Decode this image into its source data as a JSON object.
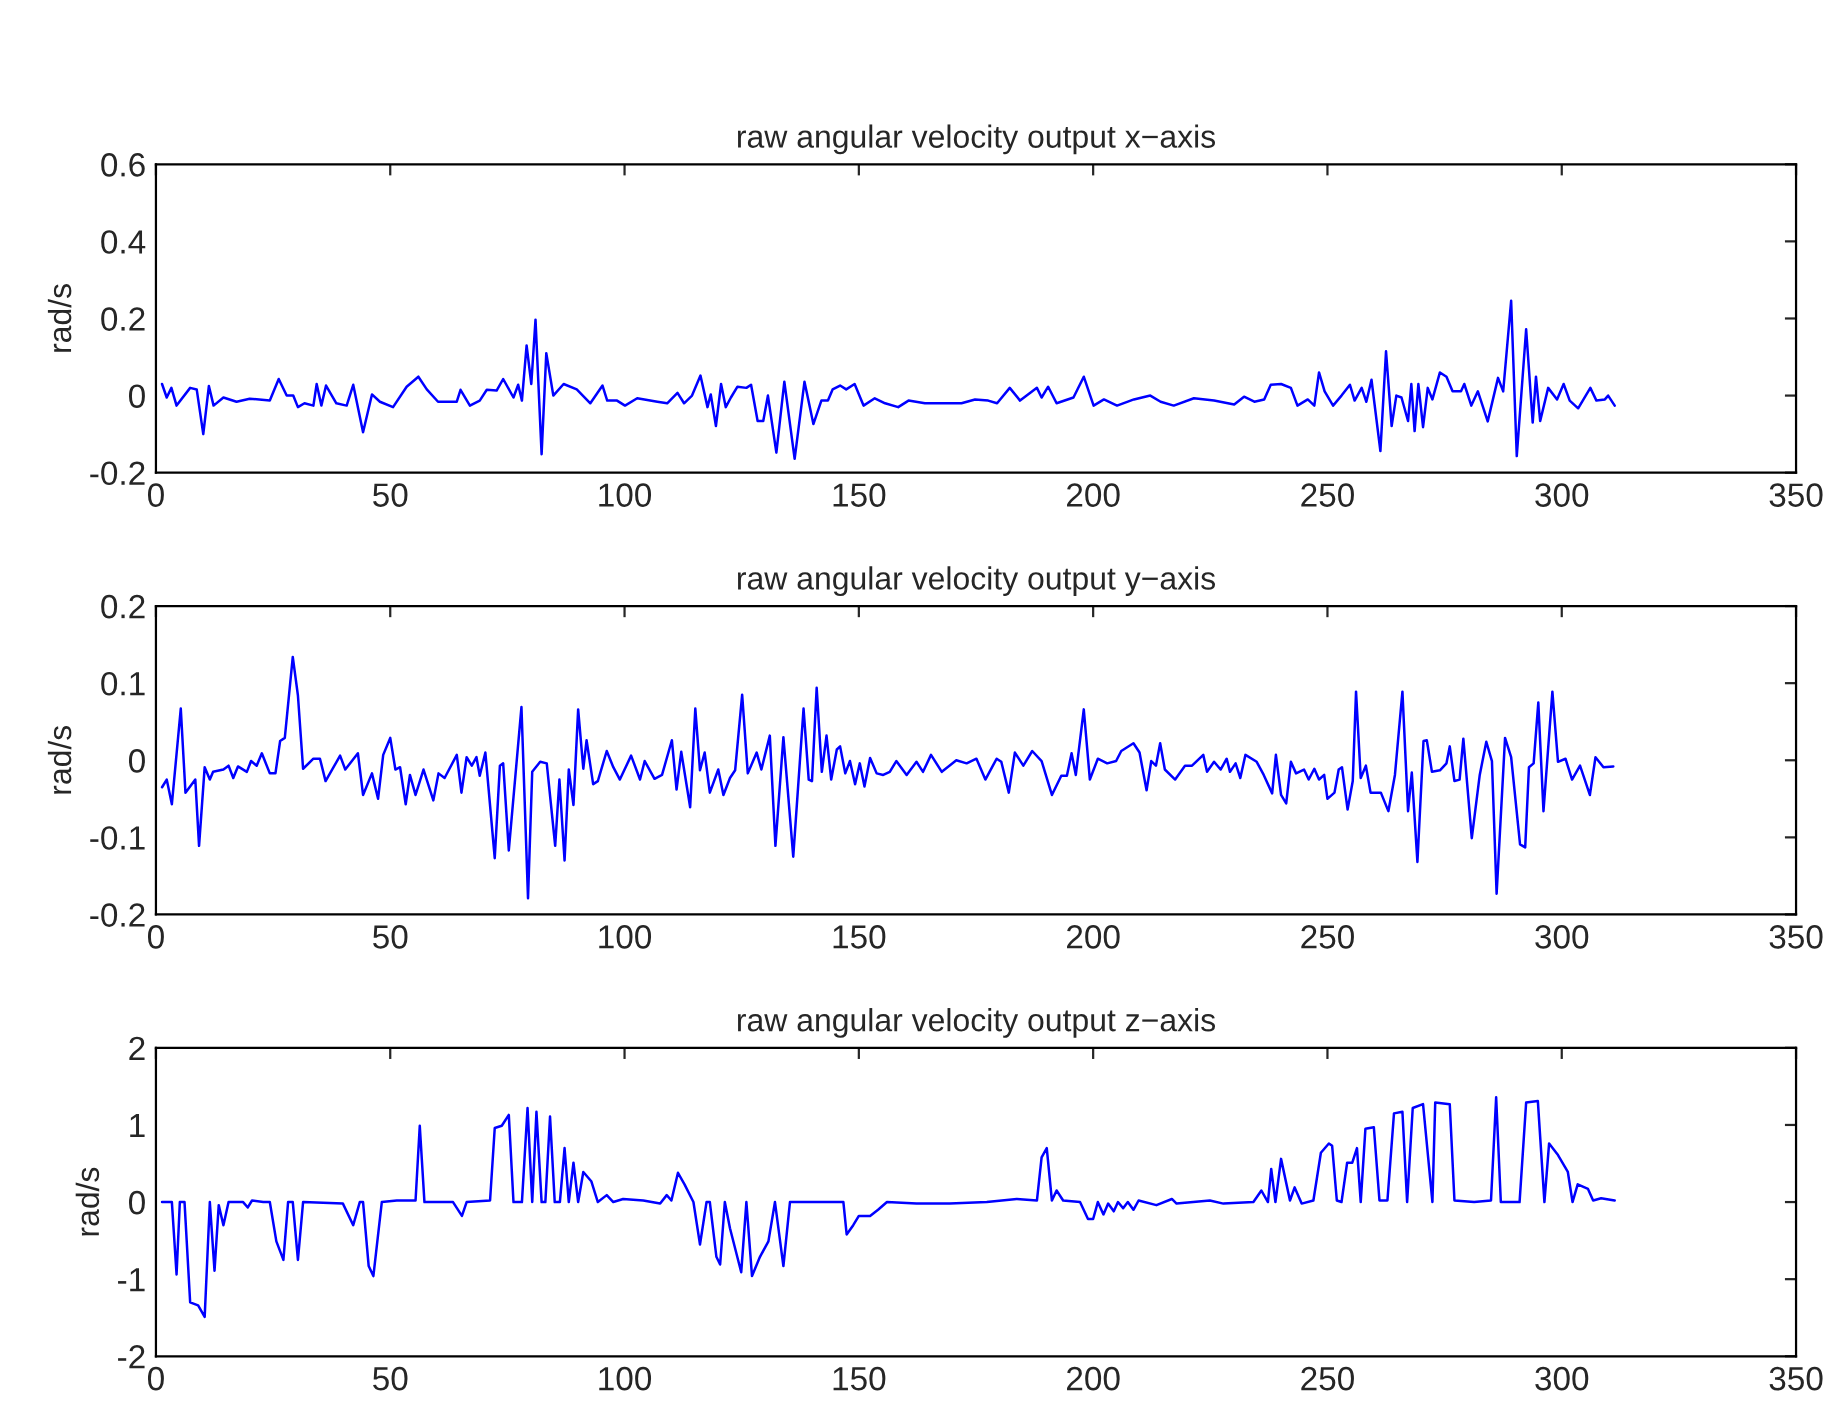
{
  "chart_data": [
    {
      "type": "line",
      "title": "raw angular velocity output x−axis",
      "ylabel": "rad/s",
      "xlim": [
        0,
        350
      ],
      "xticks": [
        0,
        50,
        100,
        150,
        200,
        250,
        300,
        350
      ],
      "ylim": [
        -0.2,
        0.6
      ],
      "yticks": [
        -0.2,
        0,
        0.2,
        0.4,
        0.6
      ],
      "grid": false,
      "series": [
        {
          "color": "#0000ff",
          "x": [
            1.3,
            2.3,
            3.3,
            4.4,
            7.3,
            8.7,
            10.1,
            11.3,
            12.3,
            14.4,
            17.2,
            20,
            24.3,
            26.2,
            27.9,
            29.3,
            30.3,
            31.7,
            33.6,
            34.3,
            35.3,
            36.3,
            38.5,
            40.7,
            42.1,
            44.2,
            46.1,
            47.8,
            50.6,
            53.5,
            56,
            57.8,
            60.2,
            64.2,
            65,
            67,
            69.1,
            70.6,
            72.7,
            74.1,
            76.3,
            77.3,
            78.1,
            79.1,
            80.1,
            81,
            82.3,
            83.3,
            84.8,
            87,
            89.8,
            92.7,
            95.3,
            96.3,
            98.4,
            100.1,
            102.7,
            107,
            109.1,
            111.3,
            112.7,
            114.4,
            116.2,
            117.7,
            118.4,
            119.5,
            120.6,
            121.6,
            122.7,
            124.1,
            126,
            127,
            128.4,
            129.6,
            130.6,
            132.4,
            134.1,
            136.3,
            138.4,
            140.3,
            142,
            143.4,
            144.4,
            146,
            147.3,
            149.1,
            151,
            153.4,
            155.6,
            158.4,
            160.6,
            164.1,
            168.4,
            171.9,
            174.8,
            177.6,
            179.5,
            182.2,
            184.4,
            188,
            189,
            190.4,
            192.2,
            195.8,
            198,
            200.1,
            202.3,
            205.1,
            208.7,
            212.2,
            214.4,
            217.2,
            221.5,
            225.8,
            230.1,
            232.2,
            234.4,
            236.5,
            237.9,
            240.1,
            242.2,
            243.6,
            245.8,
            247.2,
            248.2,
            249.4,
            251.2,
            253,
            254.8,
            255.8,
            257.3,
            258.3,
            259.4,
            261.3,
            262.5,
            263.7,
            264.7,
            265.8,
            267.2,
            267.9,
            268.6,
            269.4,
            270.4,
            271.4,
            272.4,
            274,
            275.4,
            276.7,
            278.5,
            279.2,
            280.7,
            282.1,
            284.2,
            286.4,
            287.5,
            289.2,
            290.4,
            292.4,
            293.8,
            294.5,
            295.4,
            297.1,
            299,
            300.4,
            301.7,
            303.5,
            306.1,
            307.4,
            309.2,
            309.9,
            311.3
          ],
          "values": [
            0.03,
            -0.005,
            0.02,
            -0.026,
            0.02,
            0.016,
            -0.1,
            0.025,
            -0.026,
            -0.005,
            -0.016,
            -0.008,
            -0.013,
            0.043,
            0,
            0,
            -0.03,
            -0.02,
            -0.026,
            0.03,
            -0.026,
            0.026,
            -0.02,
            -0.026,
            0.028,
            -0.095,
            0.003,
            -0.016,
            -0.03,
            0.023,
            0.049,
            0.016,
            -0.016,
            -0.016,
            0.015,
            -0.026,
            -0.013,
            0.015,
            0.013,
            0.043,
            -0.005,
            0.028,
            -0.013,
            0.13,
            0.03,
            0.197,
            -0.152,
            0.11,
            0,
            0.03,
            0.016,
            -0.02,
            0.026,
            -0.013,
            -0.013,
            -0.026,
            -0.007,
            -0.016,
            -0.02,
            0.007,
            -0.02,
            0,
            0.052,
            -0.03,
            0.003,
            -0.079,
            0.03,
            -0.03,
            -0.005,
            0.023,
            0.02,
            0.028,
            -0.066,
            -0.066,
            0,
            -0.148,
            0.036,
            -0.164,
            0.036,
            -0.074,
            -0.013,
            -0.013,
            0.016,
            0.026,
            0.016,
            0.03,
            -0.026,
            -0.007,
            -0.02,
            -0.03,
            -0.013,
            -0.02,
            -0.02,
            -0.02,
            -0.01,
            -0.013,
            -0.02,
            0.02,
            -0.013,
            0.02,
            -0.005,
            0.023,
            -0.02,
            -0.005,
            0.049,
            -0.026,
            -0.01,
            -0.026,
            -0.01,
            0,
            -0.016,
            -0.026,
            -0.007,
            -0.013,
            -0.023,
            -0.003,
            -0.016,
            -0.01,
            0.028,
            0.03,
            0.02,
            -0.026,
            -0.01,
            -0.026,
            0.06,
            0.011,
            -0.026,
            0,
            0.028,
            -0.013,
            0.02,
            -0.016,
            0.041,
            -0.144,
            0.115,
            -0.079,
            0,
            -0.005,
            -0.066,
            0.03,
            -0.092,
            0.03,
            -0.082,
            0.02,
            -0.01,
            0.06,
            0.049,
            0.011,
            0.011,
            0.03,
            -0.026,
            0.011,
            -0.067,
            0.046,
            0.011,
            0.246,
            -0.157,
            0.172,
            -0.07,
            0.049,
            -0.066,
            0.02,
            -0.01,
            0.03,
            -0.013,
            -0.033,
            0.02,
            -0.013,
            -0.01,
            0,
            -0.026
          ]
        }
      ]
    },
    {
      "type": "line",
      "title": "raw angular velocity output y−axis",
      "ylabel": "rad/s",
      "xlim": [
        0,
        350
      ],
      "xticks": [
        0,
        50,
        100,
        150,
        200,
        250,
        300,
        350
      ],
      "ylim": [
        -0.2,
        0.2
      ],
      "yticks": [
        -0.2,
        -0.1,
        0,
        0.1,
        0.2
      ],
      "grid": false,
      "series": [
        {
          "color": "#0000ff",
          "x": [
            1.3,
            2.3,
            3.4,
            5.3,
            6.3,
            8.4,
            9.2,
            10.4,
            11.5,
            12.2,
            14.4,
            15.5,
            16.5,
            17.5,
            19.4,
            20.3,
            21.5,
            22.6,
            24.3,
            25.5,
            26.5,
            27.5,
            29.2,
            30.3,
            31.4,
            33.6,
            35,
            36.2,
            37.9,
            39.3,
            40.4,
            43.1,
            44.2,
            46.1,
            47.4,
            48.5,
            50,
            51.1,
            52.1,
            53.3,
            54.2,
            55.4,
            57.1,
            59.2,
            60.3,
            61.6,
            64.2,
            65.2,
            66.3,
            67.4,
            68.4,
            69.1,
            70.3,
            72.3,
            73.4,
            74.1,
            75.3,
            78,
            79.4,
            80.3,
            82,
            83.4,
            85.2,
            86.1,
            87.2,
            88.1,
            89.1,
            90.1,
            91.2,
            91.9,
            93.3,
            94.3,
            96.2,
            97.6,
            99,
            101.4,
            103.3,
            104.3,
            106.4,
            108,
            110.1,
            111.1,
            112.1,
            114,
            115.1,
            116.1,
            117.1,
            118.2,
            120,
            121.1,
            122.5,
            123.6,
            125.1,
            126.3,
            128.2,
            129.2,
            131,
            132.2,
            133.9,
            136,
            138.2,
            139.3,
            140,
            141,
            142.1,
            143.1,
            144.1,
            145.3,
            146,
            147.1,
            148.1,
            149.2,
            150.2,
            151.2,
            152.4,
            153.8,
            155.2,
            156.6,
            158,
            160.2,
            162.3,
            163.7,
            165.4,
            167.7,
            170.8,
            173,
            175.1,
            177,
            179.4,
            180.4,
            182,
            183.3,
            185.1,
            187,
            189,
            191.2,
            193.2,
            194.4,
            195.4,
            196.3,
            198,
            199.3,
            201,
            203,
            204.9,
            206,
            208.6,
            209.9,
            211.4,
            212.4,
            213.4,
            214.3,
            215.3,
            217.5,
            219.6,
            221.1,
            223.5,
            224.3,
            225.8,
            227.2,
            228.5,
            229.2,
            230.4,
            231.4,
            232.5,
            234.9,
            236.4,
            238.2,
            239,
            240.1,
            241.2,
            242.2,
            243.3,
            245,
            246,
            247.2,
            248.2,
            249.3,
            250,
            251.5,
            252.4,
            253.1,
            254.3,
            255.4,
            256.1,
            257.1,
            258.2,
            259.2,
            261.4,
            263,
            264.4,
            266,
            267.2,
            268,
            269.2,
            270.5,
            271.2,
            272.3,
            274,
            275.4,
            276.1,
            277.1,
            278.2,
            279,
            280.8,
            282.5,
            283.9,
            285.1,
            286.1,
            287.9,
            289.2,
            291.1,
            292.2,
            293,
            294,
            295,
            296.1,
            298,
            299.2,
            300.8,
            302.2,
            303.9,
            306,
            307.2,
            308.9,
            311
          ],
          "values": [
            -0.035,
            -0.025,
            -0.057,
            0.067,
            -0.042,
            -0.025,
            -0.111,
            -0.009,
            -0.025,
            -0.015,
            -0.012,
            -0.007,
            -0.023,
            -0.008,
            -0.015,
            -0.001,
            -0.007,
            0.009,
            -0.017,
            -0.017,
            0.025,
            0.029,
            0.134,
            0.084,
            -0.011,
            0.002,
            0.002,
            -0.027,
            -0.009,
            0.006,
            -0.012,
            0.009,
            -0.045,
            -0.017,
            -0.05,
            0.007,
            0.029,
            -0.012,
            -0.009,
            -0.057,
            -0.019,
            -0.045,
            -0.012,
            -0.052,
            -0.017,
            -0.023,
            0.007,
            -0.042,
            0.004,
            -0.007,
            0.004,
            -0.02,
            0.01,
            -0.127,
            -0.007,
            -0.004,
            -0.117,
            0.069,
            -0.179,
            -0.015,
            -0.002,
            -0.004,
            -0.111,
            -0.025,
            -0.13,
            -0.012,
            -0.058,
            0.066,
            -0.011,
            0.026,
            -0.031,
            -0.027,
            0.012,
            -0.009,
            -0.025,
            0.006,
            -0.025,
            -0.001,
            -0.024,
            -0.019,
            0.026,
            -0.038,
            0.011,
            -0.061,
            0.067,
            -0.013,
            0.01,
            -0.042,
            -0.012,
            -0.045,
            -0.023,
            -0.013,
            0.085,
            -0.017,
            0.01,
            -0.012,
            0.032,
            -0.111,
            0.03,
            -0.125,
            0.067,
            -0.025,
            -0.027,
            0.094,
            -0.015,
            0.032,
            -0.025,
            0.014,
            0.018,
            -0.017,
            -0.001,
            -0.031,
            -0.004,
            -0.034,
            0.003,
            -0.017,
            -0.019,
            -0.015,
            -0.001,
            -0.019,
            -0.002,
            -0.015,
            0.007,
            -0.015,
            0,
            -0.004,
            0.002,
            -0.025,
            0.002,
            -0.002,
            -0.042,
            0.01,
            -0.007,
            0.012,
            -0.001,
            -0.045,
            -0.02,
            -0.02,
            0.009,
            -0.019,
            0.066,
            -0.025,
            0.002,
            -0.004,
            -0.001,
            0.012,
            0.022,
            0.01,
            -0.039,
            -0.001,
            -0.007,
            0.022,
            -0.012,
            -0.025,
            -0.007,
            -0.007,
            0.007,
            -0.015,
            -0.002,
            -0.012,
            0.002,
            -0.015,
            -0.004,
            -0.023,
            0.007,
            -0.002,
            -0.019,
            -0.043,
            0.007,
            -0.045,
            -0.056,
            -0.002,
            -0.017,
            -0.012,
            -0.025,
            -0.011,
            -0.025,
            -0.019,
            -0.05,
            -0.042,
            -0.012,
            -0.009,
            -0.064,
            -0.027,
            0.089,
            -0.023,
            -0.007,
            -0.042,
            -0.042,
            -0.066,
            -0.019,
            0.089,
            -0.066,
            -0.016,
            -0.132,
            0.025,
            0.026,
            -0.015,
            -0.013,
            -0.004,
            0.018,
            -0.027,
            -0.025,
            0.028,
            -0.101,
            -0.019,
            0.024,
            -0.001,
            -0.173,
            0.029,
            0.004,
            -0.109,
            -0.113,
            -0.009,
            -0.004,
            0.075,
            -0.066,
            0.089,
            -0.002,
            0.002,
            -0.025,
            -0.007,
            -0.045,
            0.004,
            -0.009,
            -0.008
          ]
        }
      ]
    },
    {
      "type": "line",
      "title": "raw angular velocity output z−axis",
      "ylabel": "rad/s",
      "xlim": [
        0,
        350
      ],
      "xticks": [
        0,
        50,
        100,
        150,
        200,
        250,
        300,
        350
      ],
      "ylim": [
        -2,
        2
      ],
      "yticks": [
        -2,
        -1,
        0,
        1,
        2
      ],
      "grid": false,
      "series": [
        {
          "color": "#0000ff",
          "x": [
            1.3,
            3.4,
            4.4,
            5.1,
            6.1,
            7.3,
            9,
            10.4,
            11.5,
            12.5,
            13.4,
            14.4,
            15.5,
            18.6,
            19.6,
            20.5,
            22.9,
            24.3,
            25.7,
            27.2,
            28.2,
            29.2,
            30.3,
            31.4,
            39.9,
            42.1,
            43.5,
            44.2,
            45.4,
            46.4,
            48.2,
            51.4,
            55.4,
            56.3,
            57.3,
            63.4,
            65.3,
            66.3,
            71.3,
            72.3,
            73.8,
            75.3,
            76.3,
            78.1,
            79.3,
            80.3,
            81.2,
            82.3,
            83.1,
            84.1,
            85.1,
            86.2,
            87.2,
            88.1,
            89.1,
            90.1,
            91.2,
            92.9,
            94.3,
            96.2,
            97.6,
            99.7,
            104,
            107.6,
            109,
            110,
            111.4,
            112.8,
            114.7,
            116.1,
            117.5,
            118.2,
            119.6,
            120.4,
            121.4,
            122.5,
            124.9,
            126,
            127.2,
            128.9,
            130.7,
            132.1,
            133.9,
            135.3,
            141,
            146.7,
            147.4,
            148.8,
            150,
            152.4,
            154.1,
            156,
            162.3,
            169.4,
            177.3,
            183.7,
            188,
            189,
            190.1,
            191.2,
            192.2,
            193.6,
            197.2,
            198.9,
            200,
            201,
            202.2,
            203.2,
            204.4,
            205.3,
            206.4,
            207.4,
            208.6,
            209.7,
            213.5,
            216.8,
            217.8,
            224.9,
            227.8,
            234.2,
            235.9,
            237.3,
            238,
            238.9,
            240.1,
            242,
            243,
            244.5,
            247,
            248.6,
            250.3,
            251,
            252,
            253,
            254.2,
            255.3,
            256.3,
            257.1,
            258.1,
            259.9,
            261.1,
            262.8,
            264.2,
            266,
            267,
            268.2,
            270.4,
            272.4,
            273,
            276.1,
            277.1,
            281.3,
            284.9,
            286,
            287,
            291,
            292.4,
            294.9,
            296.3,
            297.3,
            299.2,
            301.3,
            302.3,
            303.4,
            305.6,
            306.7,
            308.4,
            311.3
          ],
          "values": [
            0,
            0,
            -0.94,
            0,
            0,
            -1.3,
            -1.34,
            -1.49,
            0,
            -0.89,
            -0.04,
            -0.3,
            0,
            0,
            -0.07,
            0.02,
            0,
            0,
            -0.51,
            -0.75,
            0,
            0,
            -0.75,
            0,
            -0.02,
            -0.3,
            0,
            0,
            -0.83,
            -0.96,
            0,
            0.02,
            0.02,
            0.99,
            0,
            0,
            -0.18,
            0,
            0.02,
            0.96,
            0.99,
            1.13,
            0,
            0,
            1.22,
            0,
            1.17,
            0,
            0,
            1.11,
            0,
            0,
            0.7,
            0,
            0.51,
            0,
            0.39,
            0.27,
            0,
            0.09,
            0,
            0.04,
            0.02,
            -0.02,
            0.09,
            0.02,
            0.38,
            0.23,
            0,
            -0.55,
            0,
            0,
            -0.71,
            -0.81,
            0,
            -0.34,
            -0.91,
            0,
            -0.96,
            -0.71,
            -0.51,
            0,
            -0.83,
            0,
            0,
            0,
            -0.42,
            -0.3,
            -0.18,
            -0.18,
            -0.1,
            0,
            -0.02,
            -0.02,
            0,
            0.04,
            0.02,
            0.58,
            0.7,
            0.02,
            0.15,
            0.02,
            0,
            -0.22,
            -0.22,
            0,
            -0.16,
            -0.02,
            -0.12,
            0,
            -0.08,
            0,
            -0.1,
            0.02,
            -0.04,
            0.04,
            -0.02,
            0.02,
            -0.02,
            0,
            0.15,
            0,
            0.43,
            0,
            0.56,
            0.02,
            0.19,
            -0.02,
            0.02,
            0.64,
            0.76,
            0.73,
            0.02,
            0,
            0.51,
            0.51,
            0.7,
            0,
            0.95,
            0.97,
            0.02,
            0.02,
            1.15,
            1.17,
            0,
            1.22,
            1.27,
            0,
            1.29,
            1.27,
            0.02,
            0,
            0.02,
            1.36,
            0,
            0,
            1.29,
            1.31,
            0,
            0.76,
            0.61,
            0.39,
            0,
            0.23,
            0.17,
            0.02,
            0.05,
            0.02
          ]
        }
      ]
    }
  ]
}
